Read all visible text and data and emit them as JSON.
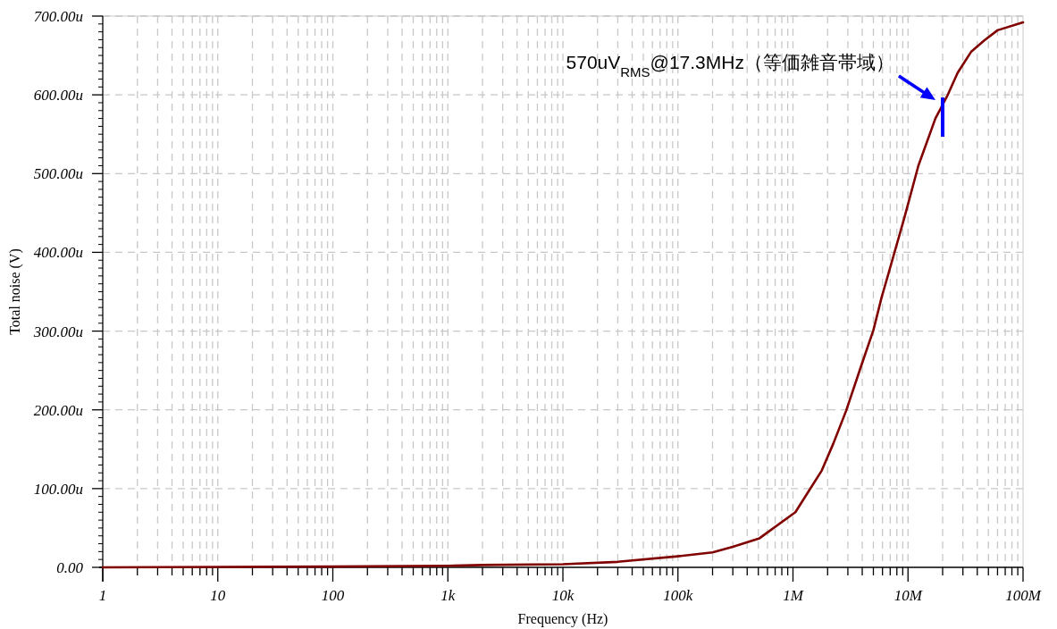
{
  "chart_data": {
    "type": "line",
    "xlabel": "Frequency (Hz)",
    "ylabel": "Total noise (V)",
    "log": "x",
    "grid": true,
    "marker": "none",
    "line_style": "solid",
    "xlim": [
      1,
      100000000
    ],
    "ylim": [
      0,
      700
    ],
    "xticks": [
      1,
      10,
      100,
      {
        "value": 1000,
        "label": "1k"
      },
      {
        "value": 10000,
        "label": "10k"
      },
      {
        "value": 100000,
        "label": "100k"
      },
      {
        "value": 1000000,
        "label": "1M"
      },
      {
        "value": 10000000,
        "label": "10M"
      },
      {
        "value": 100000000,
        "label": "100M"
      }
    ],
    "yticks": [
      {
        "value": 0,
        "label": "0.00"
      },
      {
        "value": 100,
        "label": "100.00u"
      },
      {
        "value": 200,
        "label": "200.00u"
      },
      {
        "value": 300,
        "label": "300.00u"
      },
      {
        "value": 400,
        "label": "400.00u"
      },
      {
        "value": 500,
        "label": "500.00u"
      },
      {
        "value": 600,
        "label": "600.00u"
      },
      {
        "value": 700,
        "label": "700.00u"
      }
    ],
    "series": [
      {
        "color": "#800000",
        "x": [
          1,
          100,
          1000,
          2000,
          10000,
          30000,
          100000,
          200000,
          300000,
          512000,
          1050000,
          1320000,
          1780000,
          2240000,
          2900000,
          3900000,
          5000000,
          5900000,
          6700000,
          9300000,
          12300000,
          17300000,
          22000000,
          27000000,
          35500000,
          46000000,
          60000000,
          100000000
        ],
        "values": [
          0,
          1,
          2,
          3,
          4,
          7,
          14,
          19,
          26,
          37,
          70,
          93,
          123,
          157,
          199,
          255,
          301,
          343,
          371,
          444,
          510,
          570,
          599,
          628,
          655,
          669,
          682,
          692
        ]
      }
    ],
    "annotations": [
      "570uV$_{RMS}$@17.3MHz（等価雑音帯域）"
    ]
  }
}
